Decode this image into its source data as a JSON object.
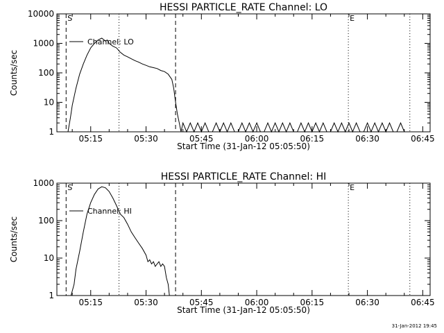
{
  "footer_timestamp": "31-Jan-2012 19:45",
  "chart_data": [
    {
      "type": "line",
      "title": "HESSI PARTICLE_RATE Channel: LO",
      "xlabel": "Start Time (31-Jan-12 05:05:50)",
      "ylabel": "Counts/sec",
      "y_scale": "log",
      "ylim": [
        1,
        10000
      ],
      "xlim": [
        "05:05:50",
        "06:47:00"
      ],
      "x_ticks": [
        "05:15",
        "05:30",
        "05:45",
        "06:00",
        "06:15",
        "06:30",
        "06:45"
      ],
      "y_ticks": [
        "1",
        "10",
        "100",
        "1000",
        "10000"
      ],
      "legend": {
        "position": "top-left",
        "entries": [
          "Channel: LO"
        ]
      },
      "markers": [
        {
          "label": "S",
          "time": "05:08:20",
          "style": "dashed"
        },
        {
          "label": "",
          "time": "05:22:40",
          "style": "dotted"
        },
        {
          "label": "",
          "time": "05:38:00",
          "style": "dashed"
        },
        {
          "label": "E",
          "time": "06:24:50",
          "style": "dotted"
        },
        {
          "label": "",
          "time": "06:41:30",
          "style": "dotted"
        }
      ],
      "series": [
        {
          "name": "Channel: LO",
          "x": [
            "05:08:50",
            "05:09:30",
            "05:10:00",
            "05:11:00",
            "05:12:00",
            "05:13:00",
            "05:14:00",
            "05:15:00",
            "05:16:00",
            "05:17:00",
            "05:18:00",
            "05:19:00",
            "05:19:30",
            "05:20:00",
            "05:21:00",
            "05:22:00",
            "05:23:00",
            "05:24:00",
            "05:25:00",
            "05:26:00",
            "05:27:00",
            "05:28:00",
            "05:29:00",
            "05:30:00",
            "05:31:00",
            "05:32:00",
            "05:33:00",
            "05:34:00",
            "05:35:00",
            "05:36:00",
            "05:37:00",
            "05:37:30",
            "05:38:00",
            "05:38:30",
            "05:39:00",
            "05:39:30",
            "05:40:00",
            "05:41:00",
            "05:42:00",
            "05:43:00",
            "05:44:00",
            "05:45:00",
            "05:46:00",
            "05:47:00",
            "05:48:00",
            "05:49:00",
            "05:50:00",
            "05:51:00",
            "05:52:00",
            "05:53:00",
            "05:54:00",
            "05:55:00",
            "05:56:00",
            "05:57:00",
            "05:58:00",
            "05:59:00",
            "06:00:00",
            "06:01:00",
            "06:02:00",
            "06:03:00",
            "06:04:00",
            "06:05:00",
            "06:06:00",
            "06:07:00",
            "06:08:00",
            "06:09:00",
            "06:10:00",
            "06:11:00",
            "06:12:00",
            "06:13:00",
            "06:14:00",
            "06:15:00",
            "06:16:00",
            "06:17:00",
            "06:18:00",
            "06:19:00",
            "06:20:00",
            "06:21:00",
            "06:22:00",
            "06:23:00",
            "06:24:00",
            "06:25:00",
            "06:26:00",
            "06:27:00",
            "06:28:00",
            "06:29:00",
            "06:30:00",
            "06:31:00",
            "06:32:00",
            "06:33:00",
            "06:34:00",
            "06:35:00",
            "06:36:00",
            "06:37:00",
            "06:38:00",
            "06:39:00",
            "06:40:00",
            "06:41:00"
          ],
          "y": [
            1,
            3,
            8,
            30,
            90,
            200,
            400,
            700,
            1000,
            1300,
            1500,
            1200,
            1300,
            1000,
            800,
            700,
            500,
            400,
            350,
            300,
            260,
            230,
            200,
            180,
            160,
            150,
            140,
            120,
            110,
            90,
            60,
            30,
            10,
            4,
            2,
            1,
            2,
            1,
            2,
            1,
            2,
            1,
            2,
            1,
            1,
            2,
            1,
            2,
            1,
            2,
            1,
            1,
            2,
            1,
            2,
            1,
            2,
            1,
            1,
            2,
            1,
            2,
            1,
            2,
            1,
            2,
            1,
            1,
            2,
            1,
            2,
            1,
            2,
            1,
            2,
            1,
            1,
            2,
            1,
            2,
            1,
            2,
            1,
            2,
            1,
            1,
            2,
            1,
            2,
            1,
            2,
            1,
            2,
            1,
            1,
            2,
            1,
            1
          ]
        }
      ]
    },
    {
      "type": "line",
      "title": "HESSI PARTICLE_RATE Channel: HI",
      "xlabel": "Start Time (31-Jan-12 05:05:50)",
      "ylabel": "Counts/sec",
      "y_scale": "log",
      "ylim": [
        1,
        1000
      ],
      "xlim": [
        "05:05:50",
        "06:47:00"
      ],
      "x_ticks": [
        "05:15",
        "05:30",
        "05:45",
        "06:00",
        "06:15",
        "06:30",
        "06:45"
      ],
      "y_ticks": [
        "1",
        "10",
        "100",
        "1000"
      ],
      "legend": {
        "position": "top-left",
        "entries": [
          "Channel: HI"
        ]
      },
      "markers": [
        {
          "label": "S",
          "time": "05:08:20",
          "style": "dashed"
        },
        {
          "label": "",
          "time": "05:22:40",
          "style": "dotted"
        },
        {
          "label": "",
          "time": "05:38:00",
          "style": "dashed"
        },
        {
          "label": "E",
          "time": "06:24:50",
          "style": "dotted"
        },
        {
          "label": "",
          "time": "06:41:30",
          "style": "dotted"
        }
      ],
      "series": [
        {
          "name": "Channel: HI",
          "x": [
            "05:09:40",
            "05:10:30",
            "05:11:00",
            "05:12:00",
            "05:13:00",
            "05:14:00",
            "05:15:00",
            "05:16:00",
            "05:17:00",
            "05:18:00",
            "05:19:00",
            "05:20:00",
            "05:21:00",
            "05:22:00",
            "05:23:00",
            "05:24:00",
            "05:25:00",
            "05:26:00",
            "05:27:00",
            "05:28:00",
            "05:29:00",
            "05:30:00",
            "05:30:30",
            "05:31:00",
            "05:31:30",
            "05:32:00",
            "05:32:30",
            "05:33:00",
            "05:33:30",
            "05:34:00",
            "05:34:30",
            "05:35:00",
            "05:35:30",
            "05:36:00",
            "05:36:20"
          ],
          "y": [
            1,
            2,
            5,
            15,
            50,
            150,
            300,
            500,
            700,
            800,
            750,
            600,
            400,
            250,
            150,
            120,
            80,
            50,
            35,
            25,
            18,
            12,
            8,
            9,
            7,
            8,
            6,
            7,
            8,
            6,
            7,
            6,
            3,
            2,
            1
          ]
        }
      ]
    }
  ]
}
